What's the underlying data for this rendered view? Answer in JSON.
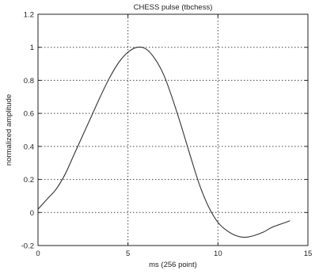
{
  "chart_data": {
    "type": "line",
    "title": "CHESS pulse (tbchess)",
    "xlabel": "ms (256 point)",
    "ylabel": "normalized amplitude",
    "xlim": [
      0,
      15
    ],
    "ylim": [
      -0.2,
      1.2
    ],
    "xticks": [
      0,
      5,
      10,
      15
    ],
    "xtick_labels": [
      "0",
      "5",
      "10",
      "15"
    ],
    "yticks": [
      -0.2,
      0,
      0.2,
      0.4,
      0.6,
      0.8,
      1.0,
      1.2
    ],
    "ytick_labels": [
      "-0.2",
      "0",
      "0.2",
      "0.4",
      "0.6",
      "0.8",
      "1",
      "1.2"
    ],
    "grid": true,
    "series": [
      {
        "color": "#333333",
        "x": [
          0,
          0.5,
          1,
          1.5,
          2,
          2.5,
          3,
          3.5,
          4,
          4.5,
          5,
          5.5,
          6,
          6.5,
          7,
          7.5,
          8,
          8.5,
          9,
          9.5,
          10,
          10.5,
          11,
          11.5,
          12,
          12.5,
          13,
          13.5,
          14
        ],
        "values": [
          0.02,
          0.08,
          0.14,
          0.23,
          0.35,
          0.47,
          0.59,
          0.71,
          0.82,
          0.91,
          0.97,
          1.0,
          0.99,
          0.93,
          0.83,
          0.68,
          0.51,
          0.33,
          0.16,
          0.03,
          -0.06,
          -0.11,
          -0.14,
          -0.15,
          -0.14,
          -0.12,
          -0.09,
          -0.07,
          -0.05
        ]
      }
    ]
  }
}
